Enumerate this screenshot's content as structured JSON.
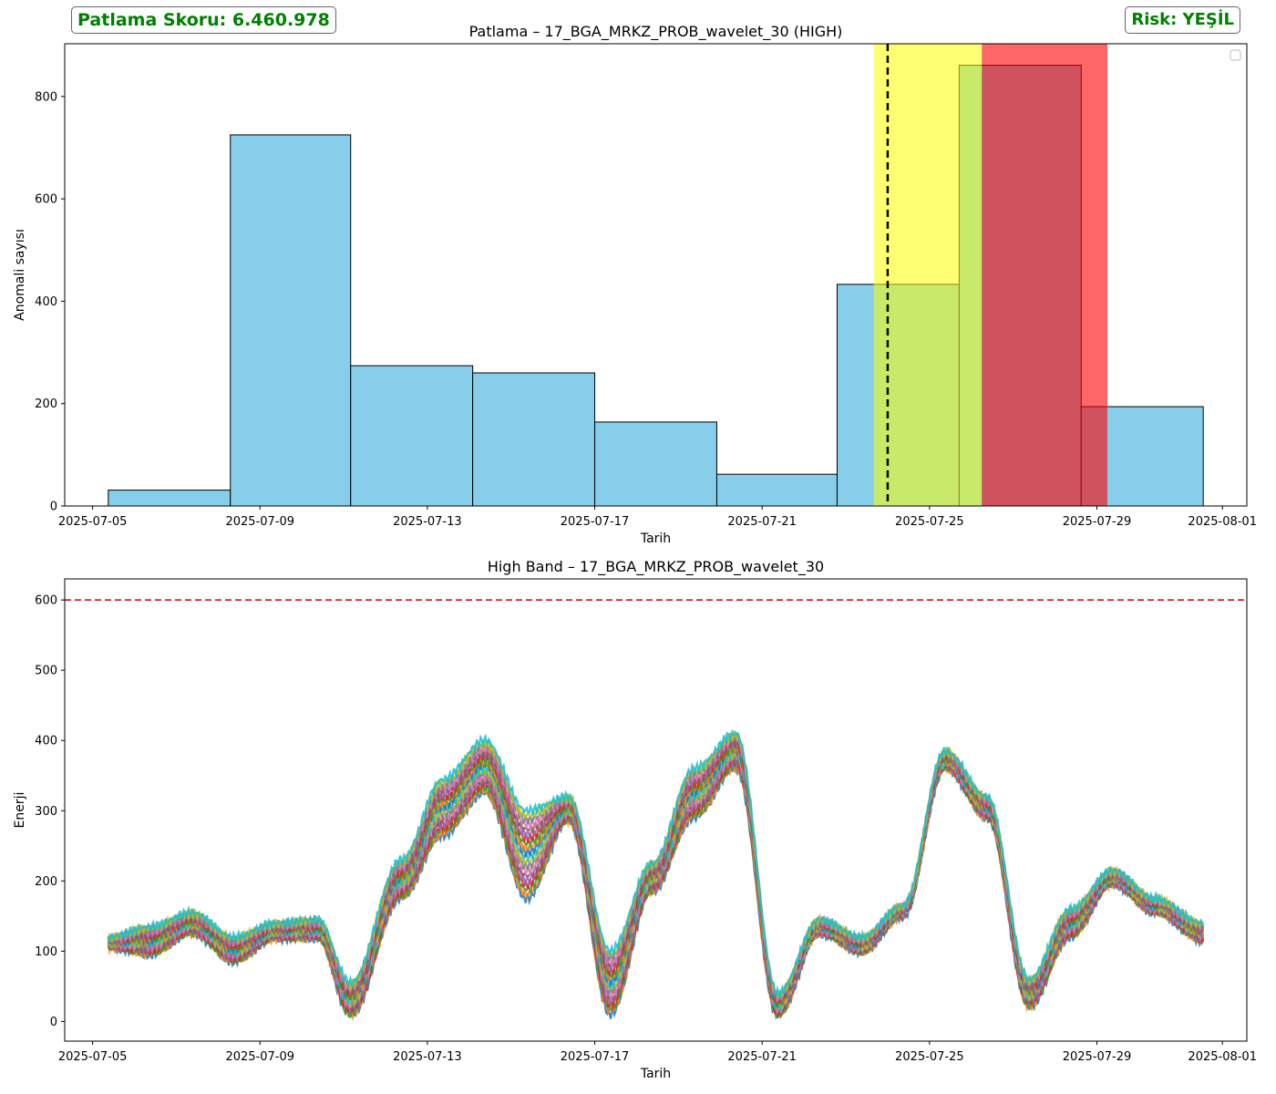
{
  "header": {
    "score_text": "Patlama Skoru: 6.460.978",
    "risk_text": "Risk: YEŞİL",
    "badge_color": "#008000"
  },
  "chart_data": [
    {
      "type": "bar",
      "title": "Patlama – 17_BGA_MRKZ_PROB_wavelet_30 (HIGH)",
      "xlabel": "Tarih",
      "ylabel": "Anomali sayısı",
      "xlim": [
        "2025-07-04T08:00",
        "2025-08-01T14:00"
      ],
      "ylim": [
        0,
        903
      ],
      "yticks": [
        0,
        200,
        400,
        600,
        800
      ],
      "xticks": [
        "2025-07-05",
        "2025-07-09",
        "2025-07-13",
        "2025-07-17",
        "2025-07-21",
        "2025-07-25",
        "2025-07-29",
        "2025-08-01"
      ],
      "bins": [
        {
          "start": "2025-07-05T09:00",
          "end": "2025-07-08T07:00",
          "value": 31
        },
        {
          "start": "2025-07-08T07:00",
          "end": "2025-07-11T04:00",
          "value": 725
        },
        {
          "start": "2025-07-11T04:00",
          "end": "2025-07-14T02:00",
          "value": 274
        },
        {
          "start": "2025-07-14T02:00",
          "end": "2025-07-17T00:00",
          "value": 260
        },
        {
          "start": "2025-07-17T00:00",
          "end": "2025-07-19T22:00",
          "value": 164
        },
        {
          "start": "2025-07-19T22:00",
          "end": "2025-07-22T19:00",
          "value": 62
        },
        {
          "start": "2025-07-22T19:00",
          "end": "2025-07-25T17:00",
          "value": 433
        },
        {
          "start": "2025-07-25T17:00",
          "end": "2025-07-28T15:00",
          "value": 861
        },
        {
          "start": "2025-07-28T15:00",
          "end": "2025-07-31T13:00",
          "value": 194
        }
      ],
      "bar_color": "#87ceeb",
      "spans": [
        {
          "start": "2025-07-23T16:00",
          "end": "2025-07-26T06:00",
          "color": "#ffff00",
          "alpha": 0.55
        },
        {
          "start": "2025-07-26T06:00",
          "end": "2025-07-29T06:00",
          "color": "#ff0000",
          "alpha": 0.6
        }
      ],
      "vline": {
        "x": "2025-07-24T00:00",
        "style": "dashed",
        "color": "#000000"
      },
      "legend": "top-right (empty)"
    },
    {
      "type": "line",
      "title": "High Band – 17_BGA_MRKZ_PROB_wavelet_30",
      "xlabel": "Tarih",
      "ylabel": "Enerji",
      "xlim": [
        "2025-07-04T08:00",
        "2025-08-01T14:00"
      ],
      "ylim": [
        -28,
        630
      ],
      "yticks": [
        0,
        100,
        200,
        300,
        400,
        500,
        600
      ],
      "xticks": [
        "2025-07-05",
        "2025-07-09",
        "2025-07-13",
        "2025-07-17",
        "2025-07-21",
        "2025-07-25",
        "2025-07-29",
        "2025-08-01"
      ],
      "threshold": {
        "y": 600,
        "color": "#d62728",
        "style": "dashed"
      },
      "series_count": 20,
      "series_colors": [
        "#1f77b4",
        "#ff7f0e",
        "#2ca02c",
        "#d62728",
        "#9467bd",
        "#8c564b",
        "#e377c2",
        "#7f7f7f",
        "#bcbd22",
        "#17becf"
      ],
      "x": [
        "2025-07-05T09:00",
        "2025-07-06T09:00",
        "2025-07-07T09:00",
        "2025-07-08T09:00",
        "2025-07-09T09:00",
        "2025-07-10T09:00",
        "2025-07-11T04:00",
        "2025-07-12T09:00",
        "2025-07-13T09:00",
        "2025-07-14T09:00",
        "2025-07-15T09:00",
        "2025-07-16T09:00",
        "2025-07-17T09:00",
        "2025-07-18T09:00",
        "2025-07-19T09:00",
        "2025-07-20T09:00",
        "2025-07-21T09:00",
        "2025-07-22T09:00",
        "2025-07-23T09:00",
        "2025-07-24T09:00",
        "2025-07-25T09:00",
        "2025-07-26T09:00",
        "2025-07-27T09:00",
        "2025-07-28T09:00",
        "2025-07-29T09:00",
        "2025-07-30T09:00",
        "2025-07-31T13:00"
      ],
      "low": [
        105,
        95,
        125,
        85,
        118,
        118,
        8,
        175,
        265,
        325,
        175,
        285,
        10,
        185,
        290,
        360,
        8,
        125,
        98,
        150,
        360,
        290,
        20,
        120,
        195,
        155,
        115
      ],
      "high": [
        120,
        135,
        155,
        120,
        140,
        145,
        55,
        230,
        345,
        400,
        300,
        320,
        100,
        225,
        360,
        410,
        40,
        145,
        120,
        165,
        385,
        320,
        60,
        160,
        215,
        175,
        140
      ]
    }
  ]
}
